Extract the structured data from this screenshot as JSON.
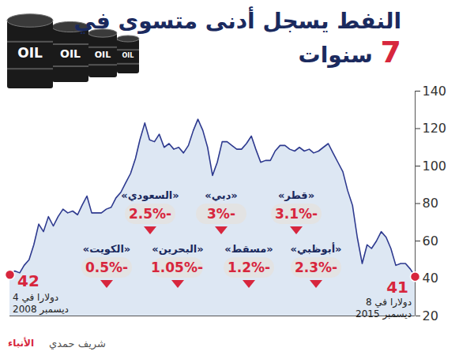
{
  "chart_data": {
    "type": "area",
    "title": "النفط يسجل أدنى متسوى في 7 سنوات",
    "image_text": "OIL",
    "x": [
      "2008-12",
      "2009-01",
      "2009-02",
      "2009-03",
      "2009-04",
      "2009-05",
      "2009-06",
      "2009-07",
      "2009-08",
      "2009-09",
      "2009-10",
      "2009-11",
      "2009-12",
      "2010-01",
      "2010-02",
      "2010-03",
      "2010-04",
      "2010-05",
      "2010-06",
      "2010-07",
      "2010-08",
      "2010-09",
      "2010-10",
      "2010-11",
      "2010-12",
      "2011-01",
      "2011-02",
      "2011-03",
      "2011-04",
      "2011-05",
      "2011-06",
      "2011-07",
      "2011-08",
      "2011-09",
      "2011-10",
      "2011-11",
      "2011-12",
      "2012-01",
      "2012-02",
      "2012-03",
      "2012-04",
      "2012-05",
      "2012-06",
      "2012-07",
      "2012-08",
      "2012-09",
      "2012-10",
      "2012-11",
      "2012-12",
      "2013-01",
      "2013-02",
      "2013-03",
      "2013-04",
      "2013-05",
      "2013-06",
      "2013-07",
      "2013-08",
      "2013-09",
      "2013-10",
      "2013-11",
      "2013-12",
      "2014-01",
      "2014-02",
      "2014-03",
      "2014-04",
      "2014-05",
      "2014-06",
      "2014-07",
      "2014-08",
      "2014-09",
      "2014-10",
      "2014-11",
      "2014-12",
      "2015-01",
      "2015-02",
      "2015-03",
      "2015-04",
      "2015-05",
      "2015-06",
      "2015-07",
      "2015-08",
      "2015-09",
      "2015-10",
      "2015-11",
      "2015-12"
    ],
    "values": [
      42,
      44,
      43,
      47,
      50,
      58,
      69,
      65,
      73,
      68,
      73,
      77,
      75,
      76,
      74,
      79,
      84,
      75,
      75,
      75,
      77,
      78,
      83,
      86,
      91,
      96,
      104,
      114,
      123,
      114,
      113,
      117,
      110,
      112,
      109,
      110,
      107,
      111,
      119,
      125,
      119,
      110,
      95,
      102,
      113,
      113,
      111,
      109,
      109,
      112,
      116,
      109,
      102,
      103,
      103,
      108,
      111,
      111,
      109,
      108,
      110,
      108,
      109,
      107,
      108,
      110,
      112,
      107,
      102,
      97,
      87,
      79,
      62,
      48,
      58,
      56,
      60,
      65,
      62,
      56,
      47,
      48,
      48,
      45,
      41
    ],
    "color": "#2e3a8f",
    "ylim": [
      20,
      140
    ],
    "yticks": [
      20,
      40,
      60,
      80,
      100,
      120,
      140
    ],
    "grid": false,
    "tick_labels": "y",
    "annotations": [
      {
        "x": "2008-12",
        "y": 42,
        "label": "42",
        "text": "دولارا في 4 ديسمبر 2008"
      },
      {
        "x": "2015-12",
        "y": 41,
        "label": "41",
        "text": "دولارا في 8 ديسمبر 2015"
      }
    ],
    "callouts": [
      {
        "name": "«السعودي»",
        "value": -2.5,
        "label": "-2.5%"
      },
      {
        "name": "«دبي»",
        "value": -3,
        "label": "-3%"
      },
      {
        "name": "«قطر»",
        "value": -3.1,
        "label": "-3.1%"
      },
      {
        "name": "«الكويت»",
        "value": -0.5,
        "label": "-0.5%"
      },
      {
        "name": "«البحرين»",
        "value": -1.05,
        "label": "-1.05%"
      },
      {
        "name": "«مسقط»",
        "value": -1.2,
        "label": "-1.2%"
      },
      {
        "name": "«أبوظبي»",
        "value": -2.3,
        "label": "-2.3%"
      }
    ],
    "credit": "شريف حمدي",
    "source": "الأنباء"
  }
}
